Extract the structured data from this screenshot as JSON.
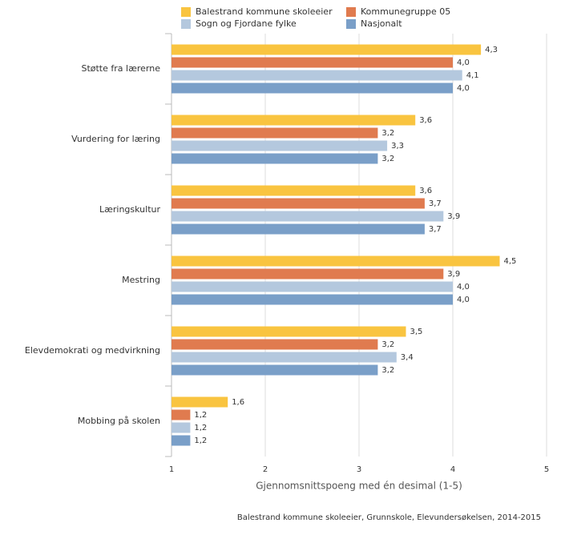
{
  "chart_data": {
    "type": "hbar",
    "categories": [
      "Støtte fra lærerne",
      "Vurdering for læring",
      "Læringskultur",
      "Mestring",
      "Elevdemokrati og medvirkning",
      "Mobbing på skolen"
    ],
    "series": [
      {
        "name": "Balestrand kommune skoleeier",
        "color": "#f9c440",
        "values": [
          4.3,
          3.6,
          3.6,
          4.5,
          3.5,
          1.6
        ],
        "value_labels": [
          "4,3",
          "3,6",
          "3,6",
          "4,5",
          "3,5",
          "1,6"
        ]
      },
      {
        "name": "Kommunegruppe 05",
        "color": "#e07b4f",
        "values": [
          4.0,
          3.2,
          3.7,
          3.9,
          3.2,
          1.2
        ],
        "value_labels": [
          "4,0",
          "3,2",
          "3,7",
          "3,9",
          "3,2",
          "1,2"
        ]
      },
      {
        "name": "Sogn og Fjordane fylke",
        "color": "#b4c8de",
        "values": [
          4.1,
          3.3,
          3.9,
          4.0,
          3.4,
          1.2
        ],
        "value_labels": [
          "4,1",
          "3,3",
          "3,9",
          "4,0",
          "3,4",
          "1,2"
        ]
      },
      {
        "name": "Nasjonalt",
        "color": "#7a9fc8",
        "values": [
          4.0,
          3.2,
          3.7,
          4.0,
          3.2,
          1.2
        ],
        "value_labels": [
          "4,0",
          "3,2",
          "3,7",
          "4,0",
          "3,2",
          "1,2"
        ]
      }
    ],
    "xlim": [
      1,
      5
    ],
    "xticks": [
      1,
      2,
      3,
      4,
      5
    ],
    "grid": true,
    "legend": "top",
    "xlabel": "Gjennomsnittspoeng med én desimal (1-5)",
    "source": "Balestrand kommune skoleeier, Grunnskole, Elevundersøkelsen, 2014-2015"
  }
}
